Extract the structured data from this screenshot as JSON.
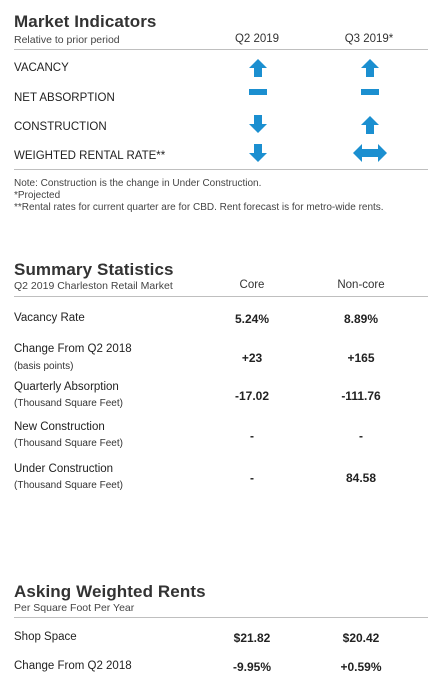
{
  "market": {
    "title": "Market Indicators",
    "subtitle": "Relative to prior period",
    "col1": "Q2 2019",
    "col2": "Q3 2019*",
    "rows": [
      {
        "label": "VACANCY",
        "q2": "arrow-up-icon",
        "q3": "arrow-up-icon"
      },
      {
        "label": "NET ABSORPTION",
        "q2": "dash-icon",
        "q3": "dash-icon"
      },
      {
        "label": "CONSTRUCTION",
        "q2": "arrow-down-icon",
        "q3": "arrow-up-icon"
      },
      {
        "label": "WEIGHTED RENTAL RATE**",
        "q2": "arrow-down-icon",
        "q3": "double-arrow-horizontal-icon"
      }
    ],
    "notes": [
      "Note: Construction is the change in Under Construction.",
      "*Projected",
      "**Rental rates for current quarter are for CBD. Rent forecast is for metro-wide rents."
    ],
    "icon_color": "#1b8fd0"
  },
  "summary": {
    "title": "Summary Statistics",
    "subtitle": "Q2 2019 Charleston Retail Market",
    "col1": "Core",
    "col2": "Non-core",
    "rows": [
      {
        "label": "Vacancy Rate",
        "sub": "",
        "core": "5.24%",
        "noncore": "8.89%"
      },
      {
        "label": "Change From Q2 2018",
        "sub": "(basis points)",
        "core": "+23",
        "noncore": "+165"
      },
      {
        "label": "Quarterly Absorption",
        "sub": "(Thousand Square Feet)",
        "core": "-17.02",
        "noncore": "-111.76"
      },
      {
        "label": "New Construction",
        "sub": "(Thousand Square Feet)",
        "core": "-",
        "noncore": "-"
      },
      {
        "label": "Under Construction",
        "sub": "(Thousand Square Feet)",
        "core": "-",
        "noncore": "84.58"
      }
    ]
  },
  "rents": {
    "title": "Asking Weighted Rents",
    "subtitle": "Per Square Foot Per Year",
    "rows": [
      {
        "label": "Shop Space",
        "core": "$21.82",
        "noncore": "$20.42"
      },
      {
        "label": "Change From Q2 2018",
        "core": "-9.95%",
        "noncore": "+0.59%"
      }
    ]
  }
}
